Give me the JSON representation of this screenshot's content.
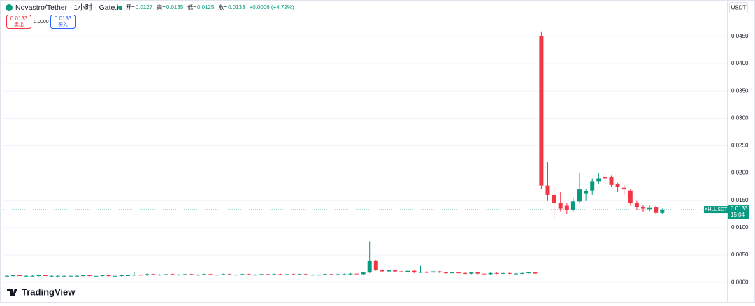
{
  "chart_data": {
    "type": "candlestick",
    "title": "Novastro/Tether · 1小时 · Gate.io",
    "legend": [
      {
        "label": "开=",
        "value": {
          "value": 0.0127,
          "label": "0.0127"
        }
      },
      {
        "label": "高=",
        "value": {
          "value": 0.0135,
          "label": "0.0135"
        }
      },
      {
        "label": "低=",
        "value": {
          "value": 0.0125,
          "label": "0.0125"
        }
      },
      {
        "label": "收=",
        "value": {
          "value": 0.0133,
          "label": "0.0133"
        }
      }
    ],
    "change": "+0.0006 (+4.72%)",
    "sell_price": "0.0133",
    "sell_label": "卖出",
    "spread": "0.0000",
    "buy_price": "0.0133",
    "buy_label": "买入",
    "currency": "USDT",
    "symbol": "XHLUSDT",
    "last_price": {
      "value": 0.0133,
      "label": "0.0133"
    },
    "countdown": "15:04",
    "brand": "TradingView",
    "up_color": "#089981",
    "down_color": "#f23645",
    "ylim": [
      -0.0033,
      0.051
    ],
    "yticks": [
      {
        "value": 0,
        "label": "0.0000"
      },
      {
        "value": 0.005,
        "label": "0.0050"
      },
      {
        "value": 0.01,
        "label": "0.0100"
      },
      {
        "value": 0.015,
        "label": "0.0150"
      },
      {
        "value": 0.02,
        "label": "0.0200"
      },
      {
        "value": 0.025,
        "label": "0.0250"
      },
      {
        "value": 0.03,
        "label": "0.0300"
      },
      {
        "value": 0.035,
        "label": "0.0350"
      },
      {
        "value": 0.04,
        "label": "0.0400"
      },
      {
        "value": 0.045,
        "label": "0.0450"
      }
    ],
    "grid": true,
    "open": [
      0.0012,
      0.0012,
      0.0013,
      0.0012,
      0.0012,
      0.0012,
      0.0013,
      0.0012,
      0.0012,
      0.0012,
      0.0012,
      0.0012,
      0.0012,
      0.0013,
      0.0012,
      0.0012,
      0.0013,
      0.0012,
      0.0012,
      0.0013,
      0.0013,
      0.0014,
      0.0013,
      0.0015,
      0.0014,
      0.0014,
      0.0015,
      0.0014,
      0.0014,
      0.0015,
      0.0014,
      0.0014,
      0.0015,
      0.0014,
      0.0014,
      0.0015,
      0.0014,
      0.0014,
      0.0015,
      0.0014,
      0.0014,
      0.0015,
      0.0014,
      0.0015,
      0.0014,
      0.0015,
      0.0014,
      0.0015,
      0.0014,
      0.0014,
      0.0014,
      0.0015,
      0.0014,
      0.0015,
      0.0015,
      0.0016,
      0.0015,
      0.0018,
      0.004,
      0.0022,
      0.002,
      0.0022,
      0.002,
      0.0019,
      0.0021,
      0.0018,
      0.0019,
      0.0018,
      0.002,
      0.0018,
      0.0017,
      0.0018,
      0.0017,
      0.0016,
      0.0018,
      0.0016,
      0.0015,
      0.0017,
      0.0016,
      0.0017,
      0.0016,
      0.0016,
      0.0017,
      0.0018,
      0.045,
      0.0177,
      0.016,
      0.0145,
      0.014,
      0.0133,
      0.0148,
      0.0163,
      0.0168,
      0.0185,
      0.0192,
      0.0193,
      0.018,
      0.0173,
      0.0168,
      0.0145,
      0.0138,
      0.0134,
      0.0137,
      0.0127
    ],
    "high": [
      0.0013,
      0.0014,
      0.0014,
      0.0013,
      0.0013,
      0.0014,
      0.0014,
      0.0013,
      0.0013,
      0.0013,
      0.0013,
      0.0013,
      0.0014,
      0.0014,
      0.0013,
      0.0014,
      0.0014,
      0.0013,
      0.0014,
      0.0014,
      0.0018,
      0.0015,
      0.0016,
      0.0016,
      0.0015,
      0.0016,
      0.0016,
      0.0015,
      0.0016,
      0.0016,
      0.0015,
      0.0016,
      0.0016,
      0.0015,
      0.0016,
      0.0016,
      0.0015,
      0.0016,
      0.0016,
      0.0015,
      0.0016,
      0.0016,
      0.0016,
      0.0016,
      0.0016,
      0.0016,
      0.0016,
      0.0016,
      0.0015,
      0.0015,
      0.0016,
      0.0016,
      0.0016,
      0.0016,
      0.0017,
      0.0017,
      0.0019,
      0.0075,
      0.0041,
      0.0024,
      0.0023,
      0.0023,
      0.0021,
      0.0022,
      0.0022,
      0.003,
      0.002,
      0.0021,
      0.0021,
      0.0019,
      0.0019,
      0.0019,
      0.0018,
      0.0019,
      0.0019,
      0.0017,
      0.0018,
      0.0018,
      0.0018,
      0.0018,
      0.0017,
      0.0018,
      0.0019,
      0.0019,
      0.0458,
      0.022,
      0.0175,
      0.0165,
      0.0145,
      0.0155,
      0.02,
      0.017,
      0.019,
      0.02,
      0.02,
      0.0195,
      0.0182,
      0.0178,
      0.017,
      0.015,
      0.0142,
      0.0142,
      0.014,
      0.0135
    ],
    "low": [
      0.0011,
      0.0011,
      0.0011,
      0.0011,
      0.0011,
      0.0011,
      0.0011,
      0.0011,
      0.0011,
      0.0011,
      0.0011,
      0.0011,
      0.0011,
      0.0011,
      0.0011,
      0.0011,
      0.0011,
      0.0011,
      0.0011,
      0.0012,
      0.0012,
      0.0012,
      0.0012,
      0.0013,
      0.0013,
      0.0013,
      0.0013,
      0.0013,
      0.0013,
      0.0013,
      0.0013,
      0.0013,
      0.0013,
      0.0013,
      0.0013,
      0.0013,
      0.0013,
      0.0013,
      0.0013,
      0.0013,
      0.0013,
      0.0013,
      0.0013,
      0.0013,
      0.0013,
      0.0013,
      0.0013,
      0.0013,
      0.0013,
      0.0013,
      0.0013,
      0.0013,
      0.0013,
      0.0014,
      0.0014,
      0.0014,
      0.0014,
      0.0017,
      0.0021,
      0.0019,
      0.0019,
      0.0019,
      0.0018,
      0.0018,
      0.0017,
      0.0017,
      0.0017,
      0.0017,
      0.0017,
      0.0016,
      0.0016,
      0.0016,
      0.0015,
      0.0015,
      0.0015,
      0.0014,
      0.0014,
      0.0015,
      0.0015,
      0.0015,
      0.0015,
      0.0015,
      0.0016,
      0.0015,
      0.017,
      0.015,
      0.0115,
      0.013,
      0.0125,
      0.013,
      0.0145,
      0.015,
      0.016,
      0.018,
      0.0185,
      0.0175,
      0.0165,
      0.016,
      0.014,
      0.0132,
      0.0128,
      0.013,
      0.0124,
      0.0125
    ],
    "close": [
      0.0012,
      0.0013,
      0.0012,
      0.0012,
      0.0012,
      0.0013,
      0.0012,
      0.0012,
      0.0012,
      0.0012,
      0.0012,
      0.0012,
      0.0013,
      0.0012,
      0.0012,
      0.0013,
      0.0012,
      0.0012,
      0.0013,
      0.0013,
      0.0014,
      0.0013,
      0.0015,
      0.0014,
      0.0014,
      0.0015,
      0.0014,
      0.0014,
      0.0015,
      0.0014,
      0.0014,
      0.0015,
      0.0014,
      0.0014,
      0.0015,
      0.0014,
      0.0014,
      0.0015,
      0.0014,
      0.0014,
      0.0015,
      0.0014,
      0.0015,
      0.0014,
      0.0015,
      0.0014,
      0.0015,
      0.0014,
      0.0014,
      0.0014,
      0.0015,
      0.0014,
      0.0015,
      0.0015,
      0.0016,
      0.0015,
      0.0018,
      0.004,
      0.0022,
      0.002,
      0.0022,
      0.002,
      0.0019,
      0.0021,
      0.0018,
      0.0019,
      0.0018,
      0.002,
      0.0018,
      0.0017,
      0.0018,
      0.0017,
      0.0016,
      0.0018,
      0.0016,
      0.0015,
      0.0017,
      0.0016,
      0.0017,
      0.0016,
      0.0016,
      0.0017,
      0.0018,
      0.0016,
      0.0177,
      0.016,
      0.0145,
      0.0135,
      0.0132,
      0.0148,
      0.017,
      0.0167,
      0.0185,
      0.019,
      0.019,
      0.0178,
      0.0175,
      0.017,
      0.0145,
      0.0137,
      0.0135,
      0.0136,
      0.0127,
      0.0133
    ]
  }
}
